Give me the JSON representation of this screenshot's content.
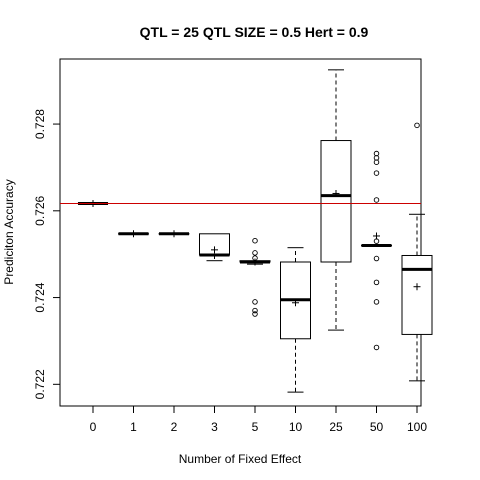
{
  "chart_data": {
    "type": "boxplot",
    "title": "QTL = 25 QTL SIZE = 0.5 Hert = 0.9",
    "xlabel": "Number of Fixed Effect",
    "ylabel": "Prediciton Accuracy",
    "ylim": [
      0.7215,
      0.7295
    ],
    "yticks": [
      0.722,
      0.724,
      0.726,
      0.728
    ],
    "categories": [
      "0",
      "1",
      "2",
      "3",
      "5",
      "10",
      "25",
      "50",
      "100"
    ],
    "boxes": [
      {
        "category": "0",
        "lower_whisker": 0.72617,
        "q1": 0.72617,
        "median": 0.72617,
        "q3": 0.72617,
        "upper_whisker": 0.72617,
        "mean": 0.72617,
        "outliers": []
      },
      {
        "category": "1",
        "lower_whisker": 0.72547,
        "q1": 0.72547,
        "median": 0.72547,
        "q3": 0.72547,
        "upper_whisker": 0.72547,
        "mean": 0.72547,
        "outliers": []
      },
      {
        "category": "2",
        "lower_whisker": 0.72547,
        "q1": 0.72547,
        "median": 0.72547,
        "q3": 0.72547,
        "upper_whisker": 0.72547,
        "mean": 0.72547,
        "outliers": []
      },
      {
        "category": "3",
        "lower_whisker": 0.72485,
        "q1": 0.72498,
        "median": 0.72498,
        "q3": 0.72547,
        "upper_whisker": 0.72547,
        "mean": 0.7251,
        "outliers": []
      },
      {
        "category": "5",
        "lower_whisker": 0.72477,
        "q1": 0.72482,
        "median": 0.72482,
        "q3": 0.72485,
        "upper_whisker": 0.72485,
        "mean": 0.72482,
        "outliers": [
          0.72531,
          0.72503,
          0.72491,
          0.7239,
          0.7237,
          0.72362
        ]
      },
      {
        "category": "10",
        "lower_whisker": 0.72182,
        "q1": 0.72305,
        "median": 0.72395,
        "q3": 0.72482,
        "upper_whisker": 0.72515,
        "mean": 0.72388,
        "outliers": []
      },
      {
        "category": "25",
        "lower_whisker": 0.72325,
        "q1": 0.72482,
        "median": 0.72635,
        "q3": 0.72762,
        "upper_whisker": 0.72925,
        "mean": 0.7264,
        "outliers": []
      },
      {
        "category": "50",
        "lower_whisker": 0.7252,
        "q1": 0.7252,
        "median": 0.7252,
        "q3": 0.7252,
        "upper_whisker": 0.7252,
        "mean": 0.72542,
        "outliers": [
          0.72732,
          0.72722,
          0.72712,
          0.72687,
          0.72625,
          0.7253,
          0.7249,
          0.72435,
          0.7239,
          0.72285
        ]
      },
      {
        "category": "100",
        "lower_whisker": 0.72208,
        "q1": 0.72315,
        "median": 0.72465,
        "q3": 0.72497,
        "upper_whisker": 0.72592,
        "mean": 0.72425,
        "outliers": [
          0.72797
        ]
      }
    ],
    "reference_line": {
      "y": 0.72617,
      "color": "#cc0000"
    },
    "mean_marker": "+",
    "grid": false
  }
}
